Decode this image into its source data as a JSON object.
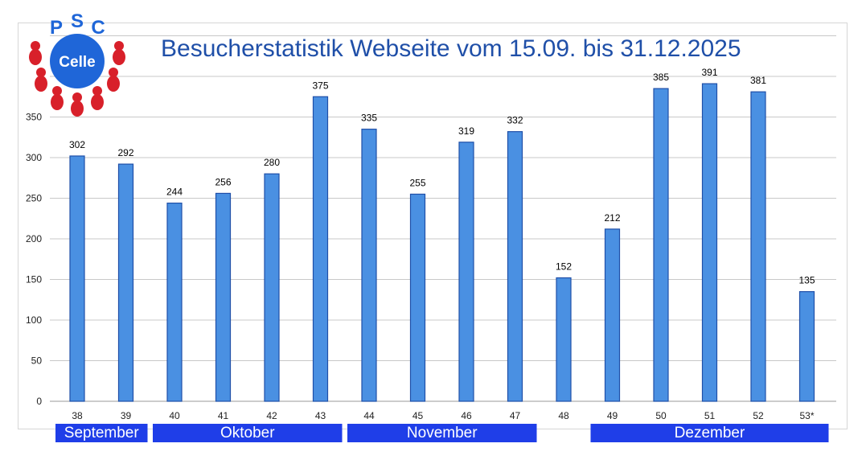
{
  "logo": {
    "arc_text": "PSC",
    "center_text": "Celle"
  },
  "chart_data": {
    "type": "bar",
    "title": "Besucherstatistik Webseite vom 15.09. bis 31.12.2025",
    "xlabel": "",
    "ylabel": "",
    "categories": [
      "38",
      "39",
      "40",
      "41",
      "42",
      "43",
      "44",
      "45",
      "46",
      "47",
      "48",
      "49",
      "50",
      "51",
      "52",
      "53*"
    ],
    "values": [
      302,
      292,
      244,
      256,
      280,
      375,
      335,
      255,
      319,
      332,
      152,
      212,
      385,
      391,
      381,
      135
    ],
    "ylim": [
      0,
      450
    ],
    "yticks": [
      0,
      50,
      100,
      150,
      200,
      250,
      300,
      350
    ],
    "grid": true,
    "bar_color": "#4a90e2",
    "bar_edge_color": "#1f4fa8",
    "month_groups": [
      {
        "label": "September",
        "from": 0,
        "to": 1
      },
      {
        "label": "Oktober",
        "from": 2,
        "to": 5
      },
      {
        "label": "November",
        "from": 6,
        "to": 9
      },
      {
        "label": "Dezember",
        "from": 11,
        "to": 15
      }
    ],
    "month_band_color": "#1f3ee8"
  }
}
